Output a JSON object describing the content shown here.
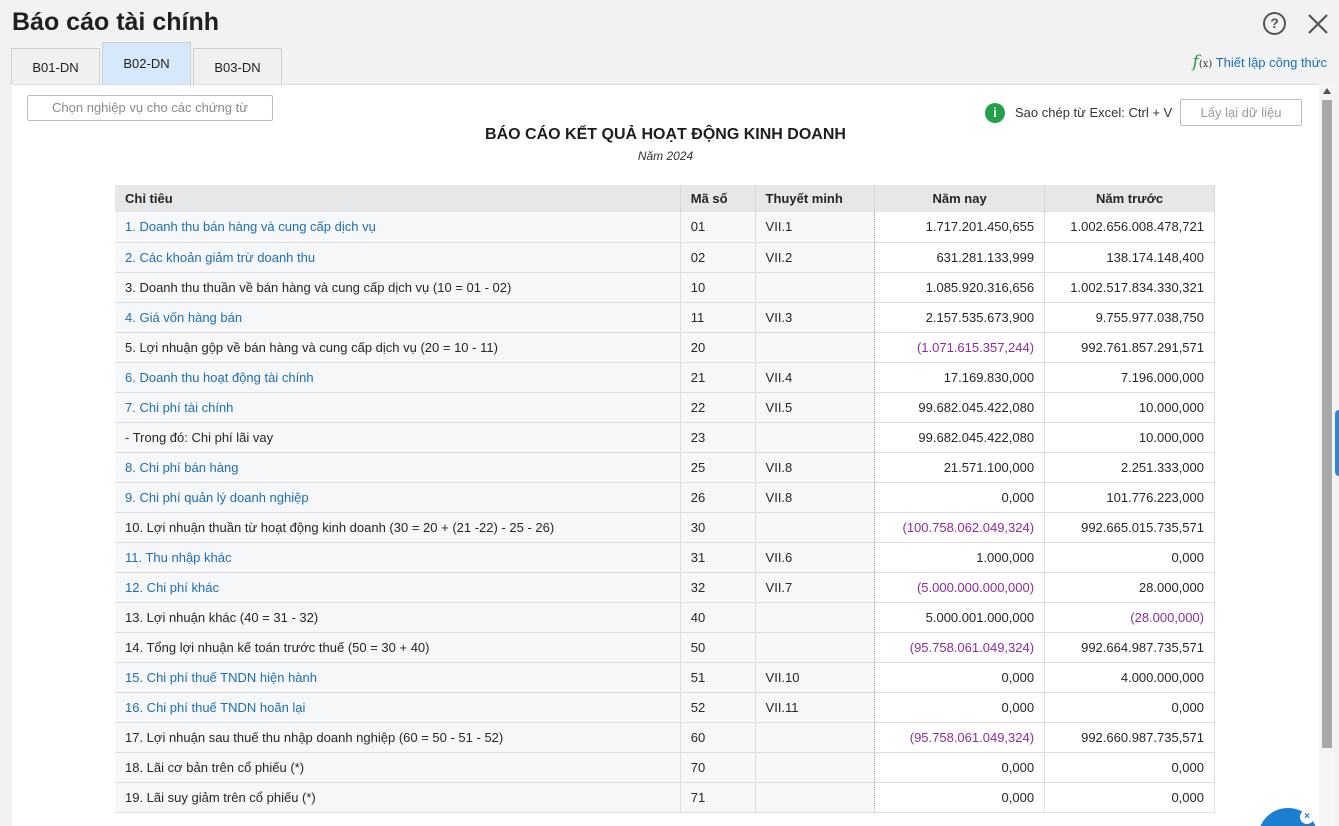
{
  "window": {
    "title": "Báo cáo tài chính",
    "help_icon": "?",
    "close_icon": "close-icon"
  },
  "tabs": [
    {
      "label": "B01-DN",
      "active": false
    },
    {
      "label": "B02-DN",
      "active": true
    },
    {
      "label": "B03-DN",
      "active": false
    }
  ],
  "formula_link": {
    "icon_text": "f",
    "icon_sub": "(x)",
    "label": "Thiết lập công thức"
  },
  "toolbar": {
    "choose_button": "Chọn nghiệp vụ cho các chứng từ",
    "info_icon": "i",
    "copy_hint": "Sao chép từ Excel: Ctrl + V",
    "reload_button": "Lấy lại dữ liệu"
  },
  "report": {
    "title": "BÁO CÁO KẾT QUẢ HOẠT ĐỘNG KINH DOANH",
    "subtitle": "Năm 2024",
    "columns": [
      "Chỉ tiêu",
      "Mã số",
      "Thuyết minh",
      "Năm nay",
      "Năm trước"
    ],
    "rows": [
      {
        "label": "1. Doanh thu bán hàng và cung cấp dịch vụ",
        "code": "01",
        "note": "VII.1",
        "current": "1.717.201.450,655",
        "previous": "1.002.656.008.478,721",
        "link": true
      },
      {
        "label": "2. Các khoản giảm trừ doanh thu",
        "code": "02",
        "note": "VII.2",
        "current": "631.281.133,999",
        "previous": "138.174.148,400",
        "link": true
      },
      {
        "label": "3. Doanh thu thuần về bán hàng và cung cấp dịch vụ (10 = 01 - 02)",
        "code": "10",
        "note": "",
        "current": "1.085.920.316,656",
        "previous": "1.002.517.834.330,321",
        "link": false
      },
      {
        "label": "4. Giá vốn hàng bán",
        "code": "11",
        "note": "VII.3",
        "current": "2.157.535.673,900",
        "previous": "9.755.977.038,750",
        "link": true
      },
      {
        "label": "5. Lợi nhuận gộp về bán hàng và cung cấp dịch vụ (20 = 10 - 11)",
        "code": "20",
        "note": "",
        "current": "(1.071.615.357,244)",
        "previous": "992.761.857.291,571",
        "link": false
      },
      {
        "label": "6. Doanh thu hoạt động tài chính",
        "code": "21",
        "note": "VII.4",
        "current": "17.169.830,000",
        "previous": "7.196.000,000",
        "link": true
      },
      {
        "label": "7. Chi phí tài chính",
        "code": "22",
        "note": "VII.5",
        "current": "99.682.045.422,080",
        "previous": "10.000,000",
        "link": true
      },
      {
        "label": "- Trong đó: Chi phí lãi vay",
        "code": "23",
        "note": "",
        "current": "99.682.045.422,080",
        "previous": "10.000,000",
        "link": false
      },
      {
        "label": "8. Chi phí bán hàng",
        "code": "25",
        "note": "VII.8",
        "current": "21.571.100,000",
        "previous": "2.251.333,000",
        "link": true
      },
      {
        "label": "9. Chi phí quản lý doanh nghiệp",
        "code": "26",
        "note": "VII.8",
        "current": "0,000",
        "previous": "101.776.223,000",
        "link": true
      },
      {
        "label": "10. Lợi nhuận thuần từ hoạt động kinh doanh (30 = 20 + (21 -22) - 25 - 26)",
        "code": "30",
        "note": "",
        "current": "(100.758.062.049,324)",
        "previous": "992.665.015.735,571",
        "link": false
      },
      {
        "label": "11. Thu nhập khác",
        "code": "31",
        "note": "VII.6",
        "current": "1.000,000",
        "previous": "0,000",
        "link": true
      },
      {
        "label": "12. Chi phí khác",
        "code": "32",
        "note": "VII.7",
        "current": "(5.000.000.000,000)",
        "previous": "28.000,000",
        "link": true
      },
      {
        "label": "13. Lợi nhuận khác (40 = 31 - 32)",
        "code": "40",
        "note": "",
        "current": "5.000.001.000,000",
        "previous": "(28.000,000)",
        "link": false
      },
      {
        "label": "14. Tổng lợi nhuận kế toán trước thuế (50 = 30 + 40)",
        "code": "50",
        "note": "",
        "current": "(95.758.061.049,324)",
        "previous": "992.664.987.735,571",
        "link": false
      },
      {
        "label": "15. Chi phí thuế TNDN hiện hành",
        "code": "51",
        "note": "VII.10",
        "current": "0,000",
        "previous": "4.000.000,000",
        "link": true
      },
      {
        "label": "16. Chi phí thuế TNDN hoãn lại",
        "code": "52",
        "note": "VII.11",
        "current": "0,000",
        "previous": "0,000",
        "link": true
      },
      {
        "label": "17. Lợi nhuận sau thuế thu nhập doanh nghiệp (60 = 50 - 51 - 52)",
        "code": "60",
        "note": "",
        "current": "(95.758.061.049,324)",
        "previous": "992.660.987.735,571",
        "link": false
      },
      {
        "label": "18. Lãi cơ bản trên cổ phiếu (*)",
        "code": "70",
        "note": "",
        "current": "0,000",
        "previous": "0,000",
        "link": false
      },
      {
        "label": "19. Lãi suy giảm trên cổ phiếu (*)",
        "code": "71",
        "note": "",
        "current": "0,000",
        "previous": "0,000",
        "link": false
      }
    ]
  },
  "colors": {
    "link": "#1f6fb0",
    "negative": "#8e2c9c",
    "active_tab": "#d6e9fb",
    "info_green": "#24a04a"
  }
}
